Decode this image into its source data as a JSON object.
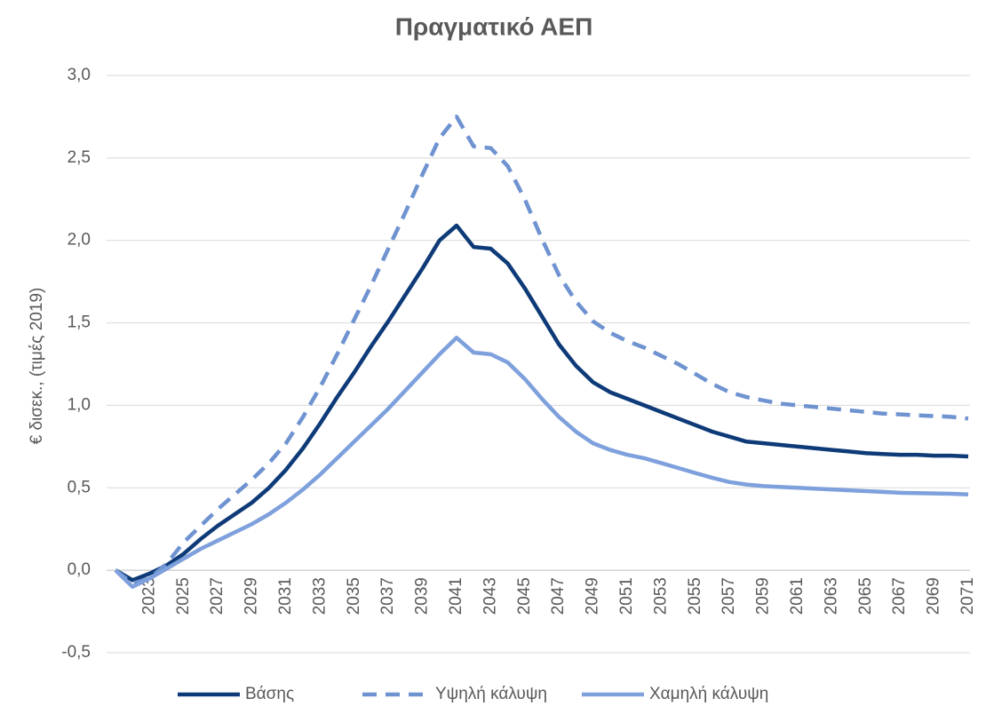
{
  "chart_data": {
    "type": "line",
    "title": "Πραγματικό ΑΕΠ",
    "ylabel": "€ δισεκ., (τιμές 2019)",
    "categories": [
      null,
      null,
      2023,
      null,
      2025,
      null,
      2027,
      null,
      2029,
      null,
      2031,
      null,
      2033,
      null,
      2035,
      null,
      2037,
      null,
      2039,
      null,
      2041,
      null,
      2043,
      null,
      2045,
      null,
      2047,
      null,
      2049,
      null,
      2051,
      null,
      2053,
      null,
      2055,
      null,
      2057,
      null,
      2059,
      null,
      2061,
      null,
      2063,
      null,
      2065,
      null,
      2067,
      null,
      2069,
      null,
      2071
    ],
    "series": [
      {
        "name": "Βάσης",
        "color": "#0e3b78",
        "dash": false,
        "values": [
          0,
          -0.06,
          -0.02,
          0.03,
          0.1,
          0.19,
          0.27,
          0.34,
          0.41,
          0.5,
          0.61,
          0.74,
          0.89,
          1.05,
          1.2,
          1.36,
          1.51,
          1.67,
          1.83,
          2.0,
          2.09,
          1.96,
          1.95,
          1.86,
          1.71,
          1.54,
          1.37,
          1.24,
          1.14,
          1.08,
          1.04,
          1.0,
          0.96,
          0.92,
          0.88,
          0.84,
          0.81,
          0.78,
          0.77,
          0.76,
          0.75,
          0.74,
          0.73,
          0.72,
          0.71,
          0.705,
          0.7,
          0.7,
          0.695,
          0.695,
          0.69
        ]
      },
      {
        "name": "Υψηλή κάλυψη",
        "color": "#6f93d0",
        "dash": true,
        "values": [
          0,
          -0.08,
          -0.05,
          0.04,
          0.17,
          0.27,
          0.37,
          0.46,
          0.55,
          0.65,
          0.77,
          0.93,
          1.11,
          1.31,
          1.52,
          1.73,
          1.95,
          2.17,
          2.4,
          2.62,
          2.75,
          2.57,
          2.56,
          2.45,
          2.25,
          2.01,
          1.79,
          1.63,
          1.51,
          1.44,
          1.39,
          1.35,
          1.3,
          1.25,
          1.19,
          1.13,
          1.08,
          1.05,
          1.03,
          1.01,
          1.0,
          0.99,
          0.98,
          0.97,
          0.96,
          0.95,
          0.945,
          0.94,
          0.935,
          0.93,
          0.92
        ]
      },
      {
        "name": "Χαμηλή κάλυψη",
        "color": "#7ea0dc",
        "dash": false,
        "values": [
          0,
          -0.1,
          -0.05,
          0.01,
          0.07,
          0.13,
          0.18,
          0.23,
          0.28,
          0.34,
          0.41,
          0.49,
          0.58,
          0.68,
          0.78,
          0.88,
          0.98,
          1.09,
          1.2,
          1.31,
          1.41,
          1.32,
          1.31,
          1.26,
          1.16,
          1.04,
          0.93,
          0.84,
          0.77,
          0.73,
          0.7,
          0.68,
          0.65,
          0.62,
          0.59,
          0.56,
          0.535,
          0.52,
          0.51,
          0.505,
          0.5,
          0.495,
          0.49,
          0.485,
          0.48,
          0.475,
          0.47,
          0.468,
          0.466,
          0.464,
          0.46
        ]
      }
    ],
    "ylim": [
      -0.5,
      3.0
    ],
    "yticks": [
      {
        "value": -0.5,
        "label": "-0,5"
      },
      {
        "value": 0,
        "label": "0,0"
      },
      {
        "value": 0.5,
        "label": "0,5"
      },
      {
        "value": 1.0,
        "label": "1,0"
      },
      {
        "value": 1.5,
        "label": "1,5"
      },
      {
        "value": 2.0,
        "label": "2,0"
      },
      {
        "value": 2.5,
        "label": "2,5"
      },
      {
        "value": 3.0,
        "label": "3,0"
      }
    ],
    "grid": true,
    "legend": "bottom"
  }
}
